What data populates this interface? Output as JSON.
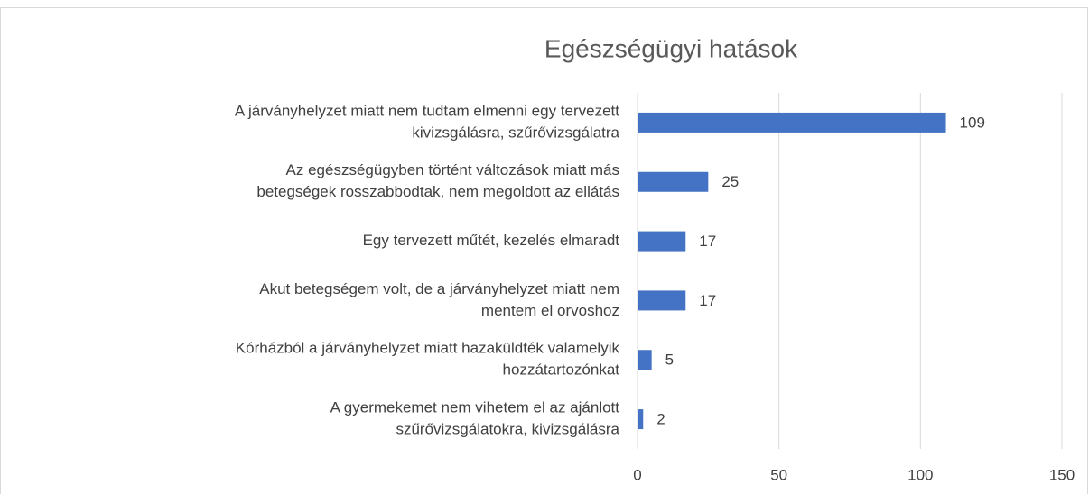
{
  "chart_data": {
    "type": "bar",
    "orientation": "horizontal",
    "title": "Egészségügyi hatások",
    "categories": [
      [
        "A járványhelyzet miatt nem tudtam elmenni egy tervezett",
        "kivizsgálásra, szűrővizsgálatra"
      ],
      [
        "Az egészségügyben történt változások miatt más",
        "betegségek rosszabbodtak, nem megoldott az ellátás"
      ],
      [
        "Egy tervezett műtét, kezelés elmaradt"
      ],
      [
        "Akut betegségem volt, de a járványhelyzet miatt nem",
        "mentem el orvoshoz"
      ],
      [
        "Kórházból a járványhelyzet miatt hazaküldték valamelyik",
        "hozzátartozónkat"
      ],
      [
        "A gyermekemet nem vihetem el az ajánlott",
        "szűrővizsgálatokra, kivizsgálásra"
      ]
    ],
    "values": [
      109,
      25,
      17,
      17,
      5,
      2
    ],
    "color": "#4472c4",
    "xlim": [
      0,
      150
    ],
    "xticks": [
      0,
      50,
      100,
      150
    ],
    "grid": true
  }
}
